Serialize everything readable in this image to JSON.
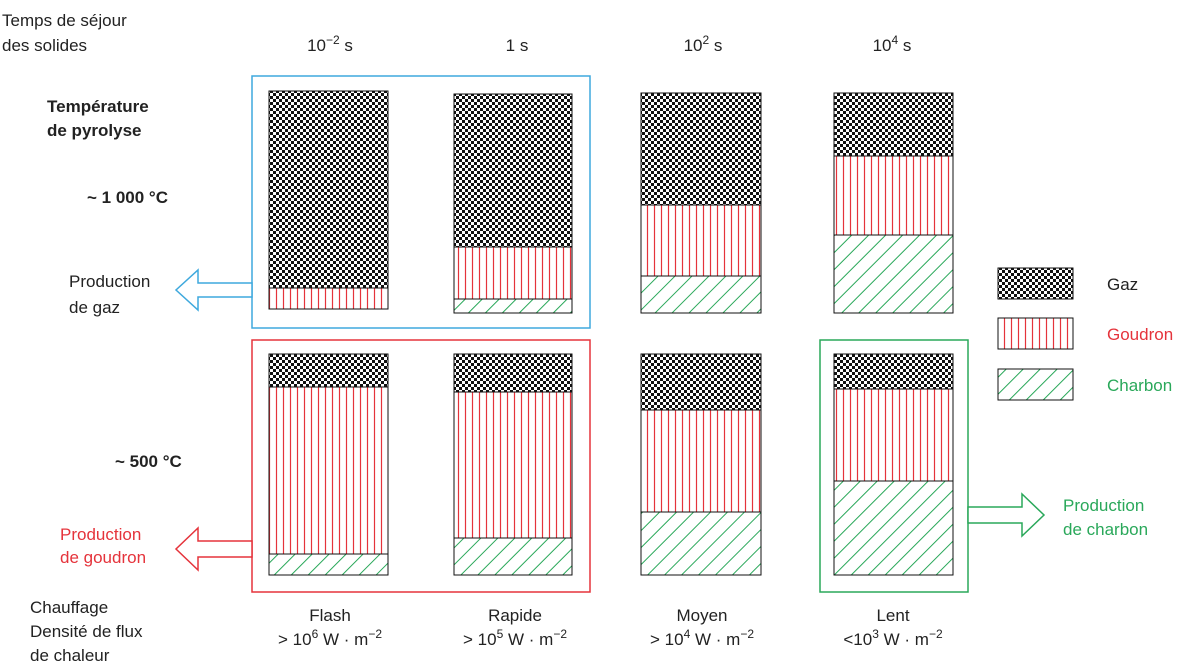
{
  "residence": {
    "title_line1": "Temps de séjour",
    "title_line2": "des solides",
    "unit": "s",
    "times": [
      {
        "base": "10",
        "exp": "−2"
      },
      {
        "base": "1",
        "exp": ""
      },
      {
        "base": "10",
        "exp": "2"
      },
      {
        "base": "10",
        "exp": "4"
      }
    ]
  },
  "temperature": {
    "title_line1": "Température",
    "title_line2": "de pyrolyse",
    "high": "~ 1 000 °C",
    "low": "~ 500 °C"
  },
  "heating": {
    "title_line1": "Chauffage",
    "title_line2": "Densité de flux",
    "title_line3": "de chaleur",
    "unit": "W · m",
    "unit_exp": "−2",
    "modes": [
      {
        "name": "Flash",
        "prefix": "> 10",
        "exp": "6"
      },
      {
        "name": "Rapide",
        "prefix": "> 10",
        "exp": "5"
      },
      {
        "name": "Moyen",
        "prefix": "> 10",
        "exp": "4"
      },
      {
        "name": "Lent",
        "prefix": "<10",
        "exp": "3"
      }
    ]
  },
  "productions": {
    "gaz_line1": "Production",
    "gaz_line2": "de gaz",
    "goudron_line1": "Production",
    "goudron_line2": "de goudron",
    "charbon_line1": "Production",
    "charbon_line2": "de charbon"
  },
  "legend": {
    "gaz": "Gaz",
    "goudron": "Goudron",
    "charbon": "Charbon"
  },
  "colors": {
    "gaz": "#111111",
    "goudron": "#e5333b",
    "charbon": "#2aa85a",
    "gaz_frame": "#3fa9dd"
  }
}
